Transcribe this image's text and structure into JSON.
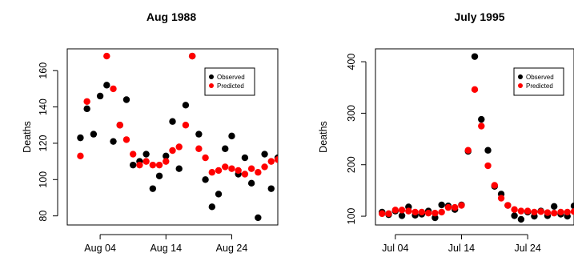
{
  "chart_data": [
    {
      "type": "scatter",
      "title": "Aug 1988",
      "ylabel": "Deaths",
      "xlabel": "",
      "ylim": [
        75,
        172
      ],
      "xlim": [
        "1988-07-30",
        "1988-08-31"
      ],
      "y_ticks": [
        80,
        100,
        120,
        140,
        160
      ],
      "x_ticks": [
        {
          "date": "1988-08-04",
          "label": "Aug 04"
        },
        {
          "date": "1988-08-14",
          "label": "Aug 14"
        },
        {
          "date": "1988-08-24",
          "label": "Aug 24"
        }
      ],
      "legend_position": "top-right",
      "grid": false,
      "x": [
        "1988-08-01",
        "1988-08-02",
        "1988-08-03",
        "1988-08-04",
        "1988-08-05",
        "1988-08-06",
        "1988-08-07",
        "1988-08-08",
        "1988-08-09",
        "1988-08-10",
        "1988-08-11",
        "1988-08-12",
        "1988-08-13",
        "1988-08-14",
        "1988-08-15",
        "1988-08-16",
        "1988-08-17",
        "1988-08-18",
        "1988-08-19",
        "1988-08-20",
        "1988-08-21",
        "1988-08-22",
        "1988-08-23",
        "1988-08-24",
        "1988-08-25",
        "1988-08-26",
        "1988-08-27",
        "1988-08-28",
        "1988-08-29",
        "1988-08-30",
        "1988-08-31"
      ],
      "series": [
        {
          "name": "Observed",
          "color": "#000000",
          "values": [
            123,
            139,
            125,
            146,
            152,
            121,
            130,
            144,
            108,
            110,
            114,
            95,
            102,
            113,
            132,
            106,
            141,
            168,
            125,
            100,
            85,
            92,
            117,
            124,
            103,
            112,
            98,
            79,
            114,
            95,
            112
          ]
        },
        {
          "name": "Predicted",
          "color": "#ff0000",
          "values": [
            113,
            143,
            null,
            null,
            168,
            150,
            130,
            122,
            114,
            108,
            110,
            108,
            108,
            110,
            116,
            118,
            130,
            168,
            117,
            112,
            104,
            105,
            107,
            106,
            105,
            103,
            106,
            104,
            107,
            110,
            111
          ]
        }
      ]
    },
    {
      "type": "scatter",
      "title": "July 1995",
      "ylabel": "Deaths",
      "xlabel": "",
      "ylim": [
        83,
        425
      ],
      "xlim": [
        "1995-07-01",
        "1995-07-31"
      ],
      "y_ticks": [
        100,
        200,
        300,
        400
      ],
      "x_ticks": [
        {
          "date": "1995-07-04",
          "label": "Jul 04"
        },
        {
          "date": "1995-07-14",
          "label": "Jul 14"
        },
        {
          "date": "1995-07-24",
          "label": "Jul 24"
        }
      ],
      "legend_position": "top-right",
      "grid": false,
      "x": [
        "1995-07-02",
        "1995-07-03",
        "1995-07-04",
        "1995-07-05",
        "1995-07-06",
        "1995-07-07",
        "1995-07-08",
        "1995-07-09",
        "1995-07-10",
        "1995-07-11",
        "1995-07-12",
        "1995-07-13",
        "1995-07-14",
        "1995-07-15",
        "1995-07-16",
        "1995-07-17",
        "1995-07-18",
        "1995-07-19",
        "1995-07-20",
        "1995-07-21",
        "1995-07-22",
        "1995-07-23",
        "1995-07-24",
        "1995-07-25",
        "1995-07-26",
        "1995-07-27",
        "1995-07-28",
        "1995-07-29",
        "1995-07-30",
        "1995-07-31"
      ],
      "series": [
        {
          "name": "Observed",
          "color": "#000000",
          "values": [
            108,
            103,
            110,
            101,
            118,
            102,
            104,
            110,
            97,
            122,
            120,
            113,
            122,
            226,
            410,
            288,
            228,
            158,
            143,
            121,
            101,
            94,
            108,
            100,
            110,
            101,
            119,
            104,
            100,
            120
          ]
        },
        {
          "name": "Predicted",
          "color": "#ff0000",
          "values": [
            105,
            105,
            112,
            112,
            110,
            108,
            108,
            106,
            106,
            108,
            117,
            117,
            121,
            228,
            346,
            275,
            198,
            160,
            135,
            121,
            113,
            110,
            110,
            108,
            109,
            107,
            106,
            108,
            108,
            109
          ]
        }
      ]
    }
  ]
}
